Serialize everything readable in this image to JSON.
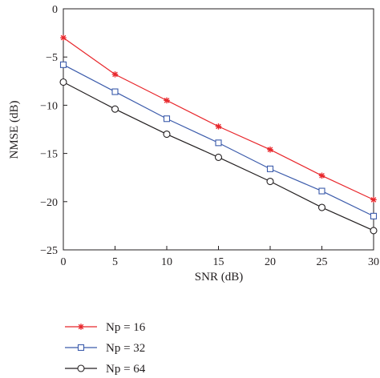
{
  "chart_data": {
    "type": "line",
    "title": "",
    "xlabel": "SNR (dB)",
    "ylabel": "NMSE (dB)",
    "xlim": [
      0,
      30
    ],
    "ylim": [
      -25,
      0
    ],
    "xticks": [
      0,
      5,
      10,
      15,
      20,
      25,
      30
    ],
    "yticks": [
      0,
      -5,
      -10,
      -15,
      -20,
      -25
    ],
    "xtick_labels": [
      "0",
      "5",
      "10",
      "15",
      "20",
      "25",
      "30"
    ],
    "ytick_labels": [
      "0",
      "−5",
      "−10",
      "−15",
      "−20",
      "−25"
    ],
    "grid": false,
    "legend_position": "below plot",
    "x": [
      0,
      5,
      10,
      15,
      20,
      25,
      30
    ],
    "series": [
      {
        "name": "Np = 16",
        "color": "#e8262b",
        "marker": "asterisk",
        "values": [
          -3.0,
          -6.8,
          -9.5,
          -12.2,
          -14.6,
          -17.3,
          -19.8
        ]
      },
      {
        "name": "Np = 32",
        "color": "#3b5bab",
        "marker": "square",
        "values": [
          -5.8,
          -8.6,
          -11.4,
          -13.9,
          -16.6,
          -18.9,
          -21.5
        ]
      },
      {
        "name": "Np = 64",
        "color": "#231f20",
        "marker": "circle",
        "values": [
          -7.6,
          -10.4,
          -13.0,
          -15.4,
          -17.9,
          -20.6,
          -23.0
        ]
      }
    ]
  }
}
